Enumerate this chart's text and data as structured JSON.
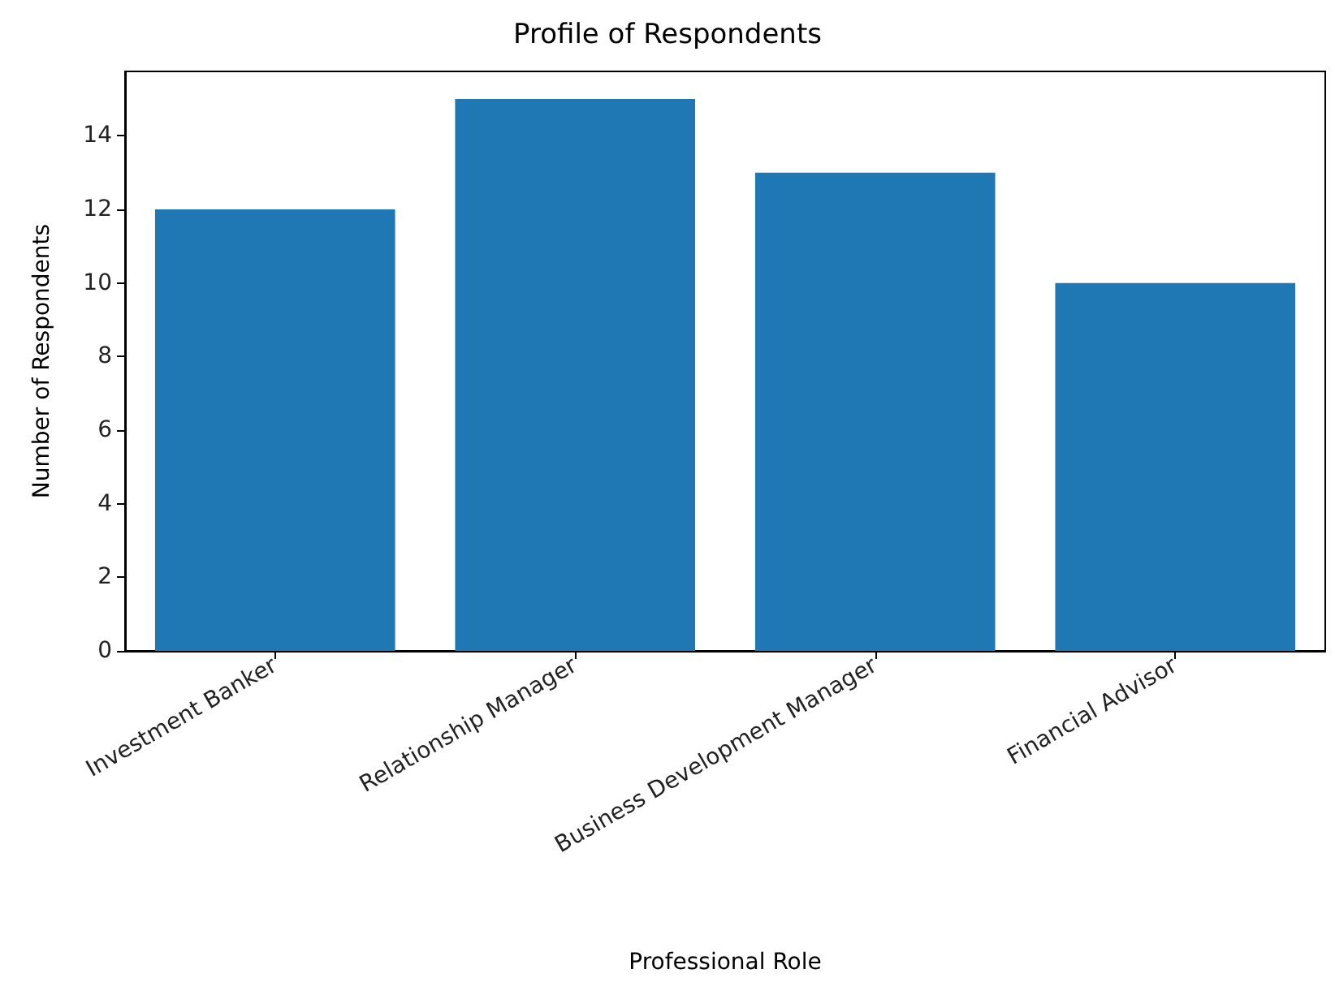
{
  "chart_data": {
    "type": "bar",
    "title": "Profile of Respondents",
    "xlabel": "Professional Role",
    "ylabel": "Number of Respondents",
    "categories": [
      "Investment Banker",
      "Relationship Manager",
      "Business Development Manager",
      "Financial Advisor"
    ],
    "values": [
      12,
      15,
      13,
      10
    ],
    "color": "#1f77b4",
    "ylim": [
      0,
      15.75
    ],
    "yticks": [
      0,
      2,
      4,
      6,
      8,
      10,
      12,
      14
    ],
    "grid": false
  }
}
